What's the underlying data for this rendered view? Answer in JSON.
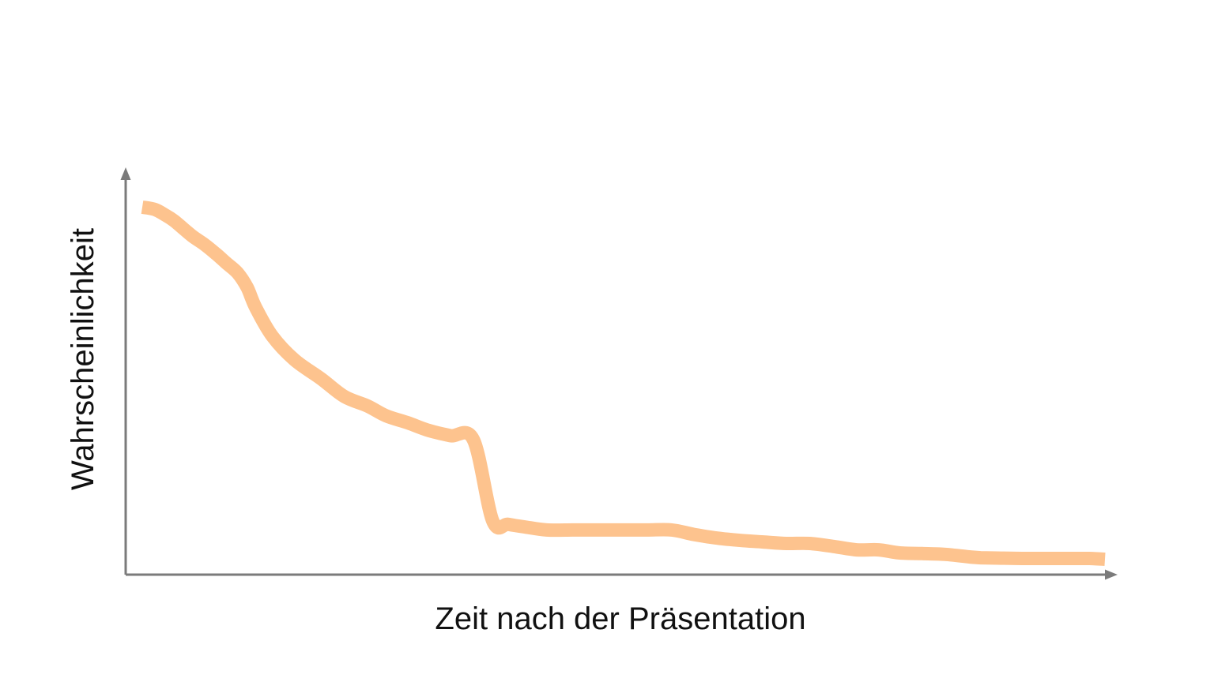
{
  "chart_data": {
    "type": "line",
    "title": "",
    "xlabel": "Zeit nach der Präsentation",
    "ylabel": "Wahrscheinlichkeit",
    "xlim": [
      0,
      100
    ],
    "ylim": [
      0,
      100
    ],
    "grid": false,
    "ticks": false,
    "series": [
      {
        "color": "#fdc38e",
        "x": [
          0,
          1.3,
          2.4,
          3.3,
          4.4,
          5.3,
          6.5,
          7.7,
          8.7,
          9.9,
          10.9,
          11.8,
          13.5,
          15.8,
          18.6,
          21.0,
          23.4,
          25.3,
          27.6,
          29.6,
          32.0,
          34.4,
          36.4,
          38.0,
          39.7,
          42.0,
          44.7,
          46.3,
          48.0,
          50.1,
          52.5,
          55.0,
          57.3,
          59.8,
          62.2,
          64.5,
          66.9,
          69.3,
          71.8,
          74.2,
          76.5,
          78.6,
          81.0,
          83.4,
          86.0,
          87.1,
          89.2,
          91.6,
          94.1,
          96.5,
          98.4,
          100
        ],
        "y": [
          95.7,
          95.1,
          93.6,
          92.1,
          89.7,
          87.8,
          85.7,
          83.2,
          80.9,
          78.2,
          74.3,
          68.9,
          61.4,
          55.1,
          50.0,
          45.3,
          42.8,
          40.2,
          38.3,
          36.4,
          34.9,
          33.8,
          12.2,
          11.3,
          10.6,
          9.8,
          9.8,
          9.8,
          9.8,
          9.8,
          9.8,
          9.8,
          8.6,
          7.6,
          7.0,
          6.6,
          6.2,
          6.2,
          5.4,
          4.5,
          4.5,
          3.7,
          3.5,
          3.3,
          2.6,
          2.4,
          2.3,
          2.2,
          2.2,
          2.2,
          2.2,
          2.0
        ]
      }
    ]
  }
}
